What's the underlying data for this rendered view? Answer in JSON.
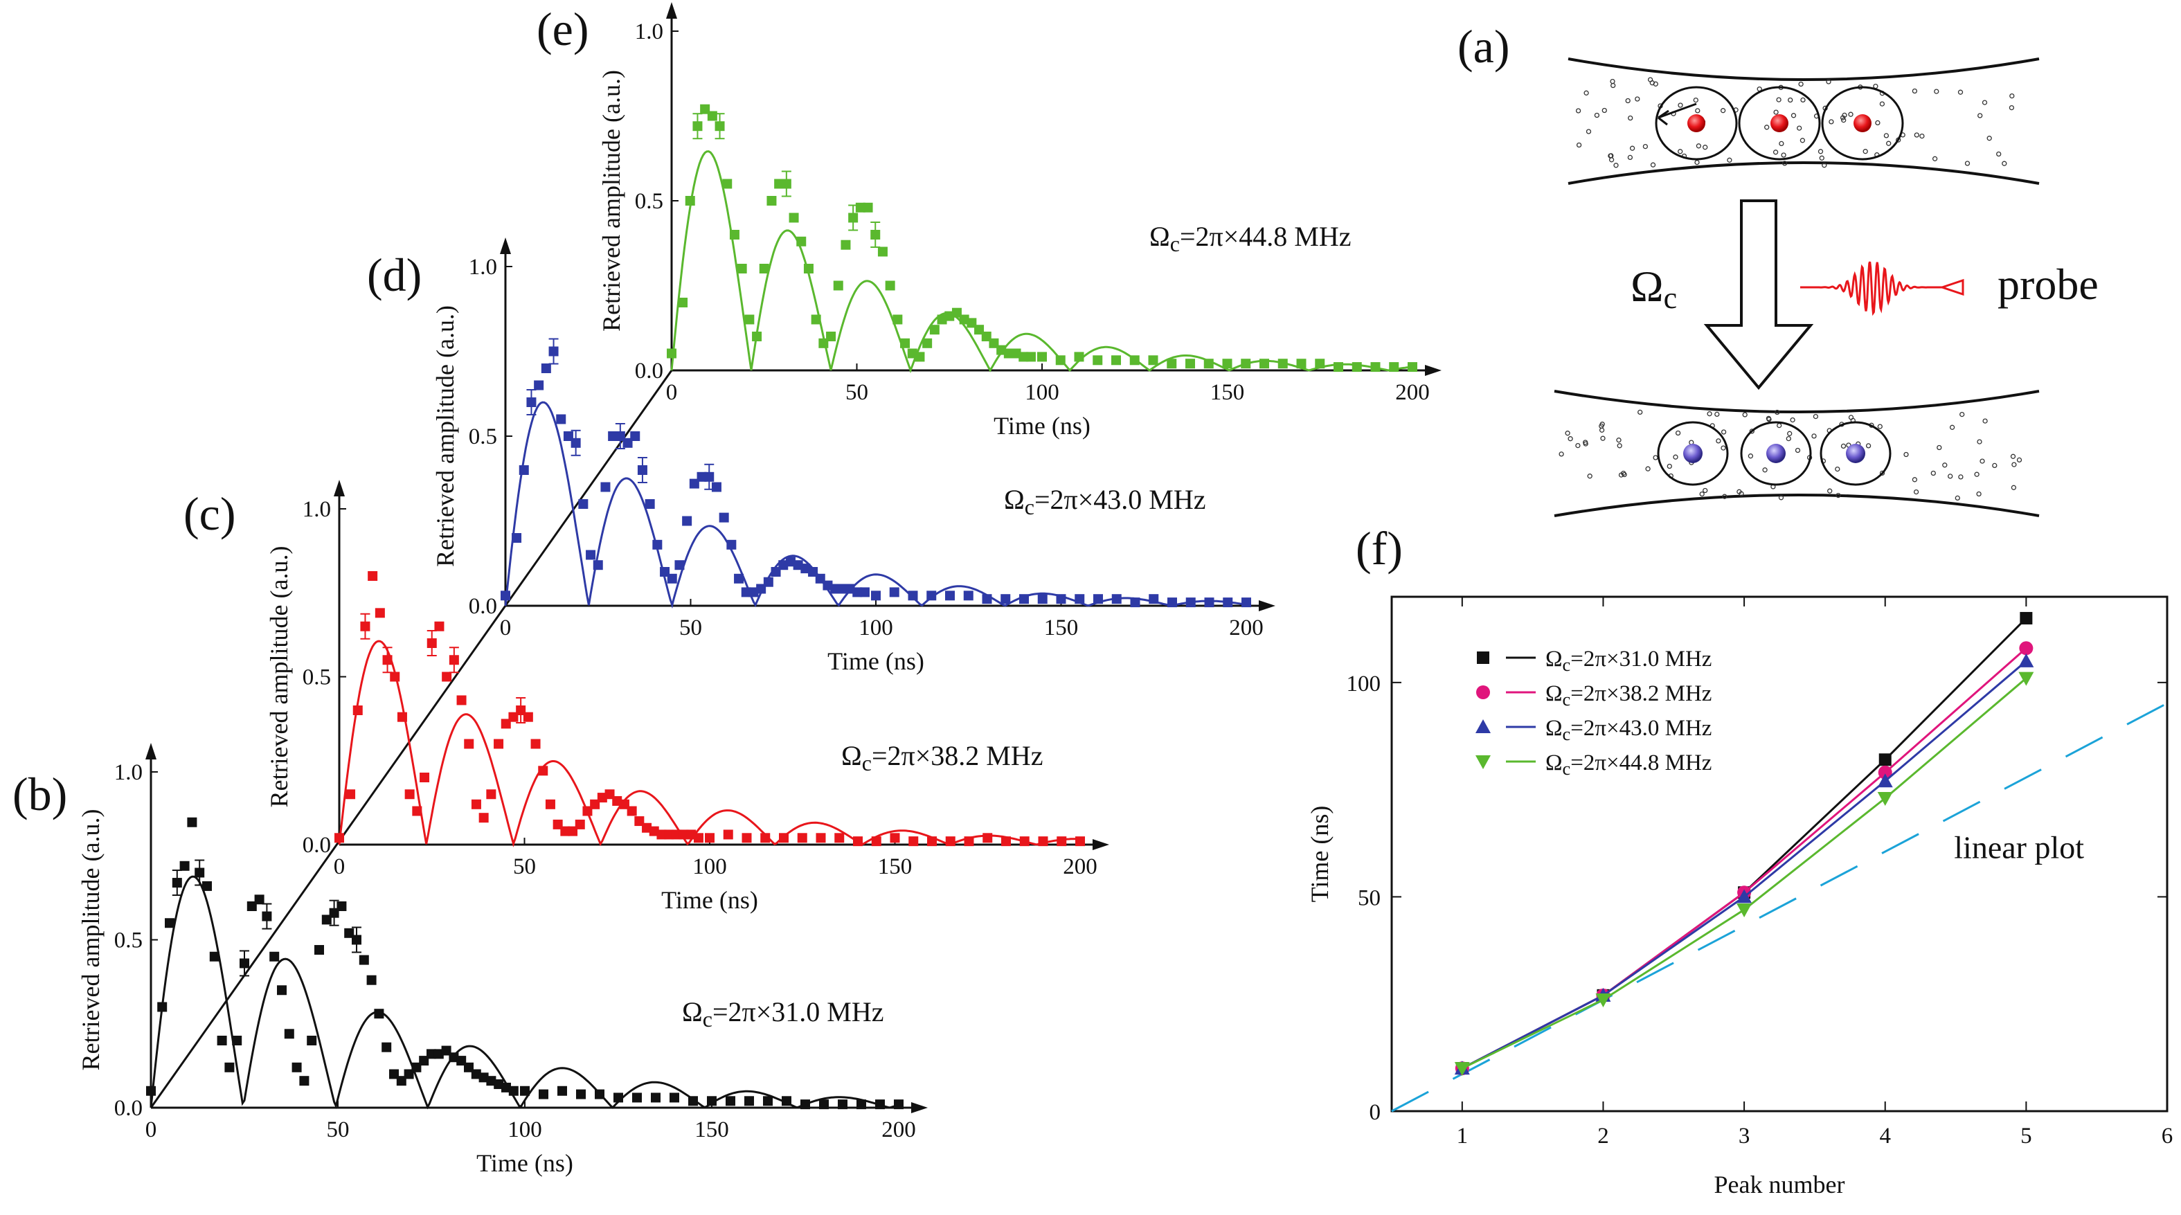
{
  "panels": {
    "a": {
      "label": "(a)",
      "omega_symbol": "Ω",
      "omega_sub": "c",
      "probe": "probe"
    },
    "b": {
      "label": "(b)"
    },
    "c": {
      "label": "(c)"
    },
    "d": {
      "label": "(d)"
    },
    "e": {
      "label": "(e)"
    },
    "f": {
      "label": "(f)"
    }
  },
  "chart_data": [
    {
      "panel": "(b)",
      "type": "scatter",
      "xlabel": "Time (ns)",
      "ylabel": "Retrieved amplitude (a.u.)",
      "xlim": [
        0,
        200
      ],
      "ylim": [
        0,
        1.0
      ],
      "xticks": [
        "0",
        "50",
        "100",
        "150",
        "200"
      ],
      "yticks": [
        "0.0",
        "0.5",
        "1.0"
      ],
      "annotation": "Ωc=2π×31.0 MHz",
      "color": "#111111",
      "marker": "square",
      "series": [
        {
          "x": [
            0,
            3,
            5,
            7,
            9,
            11,
            13,
            15,
            17,
            19,
            21,
            23,
            25,
            27,
            29,
            31,
            33,
            35,
            37,
            39,
            41,
            43,
            45,
            47,
            49,
            51,
            53,
            55,
            57,
            59,
            61,
            63,
            65,
            67,
            69,
            71,
            73,
            75,
            77,
            79,
            81,
            83,
            85,
            87,
            89,
            91,
            93,
            95,
            97,
            100,
            105,
            110,
            115,
            120,
            125,
            130,
            135,
            140,
            145,
            150,
            155,
            160,
            165,
            170,
            175,
            180,
            185,
            190,
            195,
            200
          ],
          "y": [
            0.05,
            0.3,
            0.55,
            0.67,
            0.72,
            0.85,
            0.7,
            0.66,
            0.45,
            0.2,
            0.12,
            0.2,
            0.43,
            0.6,
            0.62,
            0.57,
            0.45,
            0.35,
            0.22,
            0.12,
            0.08,
            0.2,
            0.47,
            0.56,
            0.58,
            0.6,
            0.52,
            0.5,
            0.44,
            0.38,
            0.28,
            0.18,
            0.1,
            0.08,
            0.1,
            0.12,
            0.14,
            0.16,
            0.16,
            0.17,
            0.15,
            0.14,
            0.12,
            0.1,
            0.09,
            0.08,
            0.07,
            0.06,
            0.05,
            0.05,
            0.04,
            0.05,
            0.04,
            0.04,
            0.03,
            0.03,
            0.03,
            0.03,
            0.02,
            0.02,
            0.02,
            0.02,
            0.02,
            0.02,
            0.01,
            0.01,
            0.01,
            0.01,
            0.01,
            0.01
          ]
        },
        {
          "name": "fit",
          "freq": 0.0405,
          "decay": 35,
          "amp": 0.85
        }
      ]
    },
    {
      "panel": "(c)",
      "type": "scatter",
      "xlabel": "Time (ns)",
      "ylabel": "Retrieved amplitude (a.u.)",
      "xlim": [
        0,
        200
      ],
      "ylim": [
        0,
        1.0
      ],
      "xticks": [
        "0",
        "50",
        "100",
        "150",
        "200"
      ],
      "yticks": [
        "0.0",
        "0.5",
        "1.0"
      ],
      "annotation": "Ωc=2π×38.2 MHz",
      "color": "#e8161b",
      "marker": "square",
      "series": [
        {
          "x": [
            0,
            3,
            5,
            7,
            9,
            11,
            13,
            15,
            17,
            19,
            21,
            23,
            25,
            27,
            29,
            31,
            33,
            35,
            37,
            39,
            41,
            43,
            45,
            47,
            49,
            51,
            53,
            55,
            57,
            59,
            61,
            63,
            65,
            67,
            69,
            71,
            73,
            75,
            77,
            79,
            81,
            83,
            85,
            87,
            89,
            91,
            93,
            95,
            97,
            100,
            105,
            110,
            115,
            120,
            125,
            130,
            135,
            140,
            145,
            150,
            155,
            160,
            165,
            170,
            175,
            180,
            185,
            190,
            195,
            200
          ],
          "y": [
            0.02,
            0.15,
            0.4,
            0.65,
            0.8,
            0.69,
            0.55,
            0.5,
            0.38,
            0.15,
            0.1,
            0.2,
            0.6,
            0.65,
            0.5,
            0.55,
            0.43,
            0.3,
            0.12,
            0.08,
            0.15,
            0.3,
            0.36,
            0.38,
            0.4,
            0.38,
            0.3,
            0.22,
            0.12,
            0.06,
            0.04,
            0.04,
            0.06,
            0.1,
            0.12,
            0.14,
            0.15,
            0.13,
            0.12,
            0.1,
            0.07,
            0.05,
            0.04,
            0.03,
            0.03,
            0.03,
            0.03,
            0.03,
            0.02,
            0.02,
            0.03,
            0.02,
            0.02,
            0.02,
            0.02,
            0.02,
            0.02,
            0.01,
            0.01,
            0.02,
            0.01,
            0.01,
            0.01,
            0.01,
            0.02,
            0.01,
            0.01,
            0.01,
            0.01,
            0.01
          ]
        },
        {
          "name": "fit",
          "freq": 0.0425,
          "decay": 33,
          "amp": 0.75
        }
      ]
    },
    {
      "panel": "(d)",
      "type": "scatter",
      "xlabel": "Time (ns)",
      "ylabel": "Retrieved amplitude (a.u.)",
      "xlim": [
        0,
        200
      ],
      "ylim": [
        0,
        1.0
      ],
      "xticks": [
        "0",
        "50",
        "100",
        "150",
        "200"
      ],
      "yticks": [
        "0.0",
        "0.5",
        "1.0"
      ],
      "annotation": "Ωc=2π×43.0 MHz",
      "color": "#2e3aa6",
      "marker": "square",
      "series": [
        {
          "x": [
            0,
            3,
            5,
            7,
            9,
            11,
            13,
            15,
            17,
            19,
            21,
            23,
            25,
            27,
            29,
            31,
            33,
            35,
            37,
            39,
            41,
            43,
            45,
            47,
            49,
            51,
            53,
            55,
            57,
            59,
            61,
            63,
            65,
            67,
            69,
            71,
            73,
            75,
            77,
            79,
            81,
            83,
            85,
            87,
            89,
            91,
            93,
            95,
            97,
            100,
            105,
            110,
            115,
            120,
            125,
            130,
            135,
            140,
            145,
            150,
            155,
            160,
            165,
            170,
            175,
            180,
            185,
            190,
            195,
            200
          ],
          "y": [
            0.03,
            0.2,
            0.4,
            0.6,
            0.65,
            0.7,
            0.75,
            0.55,
            0.5,
            0.48,
            0.3,
            0.15,
            0.12,
            0.35,
            0.5,
            0.5,
            0.48,
            0.5,
            0.4,
            0.3,
            0.18,
            0.1,
            0.08,
            0.12,
            0.25,
            0.36,
            0.38,
            0.38,
            0.35,
            0.26,
            0.18,
            0.08,
            0.04,
            0.04,
            0.05,
            0.07,
            0.1,
            0.12,
            0.13,
            0.12,
            0.11,
            0.1,
            0.08,
            0.06,
            0.05,
            0.05,
            0.05,
            0.04,
            0.04,
            0.03,
            0.04,
            0.03,
            0.03,
            0.03,
            0.03,
            0.02,
            0.02,
            0.02,
            0.02,
            0.02,
            0.02,
            0.02,
            0.02,
            0.01,
            0.02,
            0.01,
            0.01,
            0.01,
            0.01,
            0.01
          ]
        },
        {
          "name": "fit",
          "freq": 0.0445,
          "decay": 30,
          "amp": 0.75
        }
      ]
    },
    {
      "panel": "(e)",
      "type": "scatter",
      "xlabel": "Time (ns)",
      "ylabel": "Retrieved amplitude (a.u.)",
      "xlim": [
        0,
        200
      ],
      "ylim": [
        0,
        1.0
      ],
      "xticks": [
        "0",
        "50",
        "100",
        "150",
        "200"
      ],
      "yticks": [
        "0.0",
        "0.5",
        "1.0"
      ],
      "annotation": "Ωc=2π×44.8 MHz",
      "color": "#5ab82e",
      "marker": "square",
      "series": [
        {
          "x": [
            0,
            3,
            5,
            7,
            9,
            11,
            13,
            15,
            17,
            19,
            21,
            23,
            25,
            27,
            29,
            31,
            33,
            35,
            37,
            39,
            41,
            43,
            45,
            47,
            49,
            51,
            53,
            55,
            57,
            59,
            61,
            63,
            65,
            67,
            69,
            71,
            73,
            75,
            77,
            79,
            81,
            83,
            85,
            87,
            89,
            91,
            93,
            95,
            97,
            100,
            105,
            110,
            115,
            120,
            125,
            130,
            135,
            140,
            145,
            150,
            155,
            160,
            165,
            170,
            175,
            180,
            185,
            190,
            195,
            200
          ],
          "y": [
            0.05,
            0.2,
            0.5,
            0.72,
            0.77,
            0.75,
            0.72,
            0.55,
            0.4,
            0.3,
            0.15,
            0.1,
            0.3,
            0.5,
            0.55,
            0.55,
            0.45,
            0.38,
            0.3,
            0.15,
            0.08,
            0.1,
            0.25,
            0.37,
            0.45,
            0.48,
            0.48,
            0.4,
            0.35,
            0.25,
            0.15,
            0.08,
            0.05,
            0.04,
            0.08,
            0.12,
            0.15,
            0.16,
            0.17,
            0.15,
            0.14,
            0.12,
            0.1,
            0.08,
            0.06,
            0.05,
            0.05,
            0.04,
            0.04,
            0.04,
            0.03,
            0.04,
            0.03,
            0.03,
            0.03,
            0.03,
            0.02,
            0.02,
            0.02,
            0.02,
            0.02,
            0.02,
            0.02,
            0.02,
            0.02,
            0.01,
            0.01,
            0.01,
            0.01,
            0.01
          ]
        },
        {
          "name": "fit",
          "freq": 0.0465,
          "decay": 30,
          "amp": 0.8
        }
      ]
    },
    {
      "panel": "(f)",
      "type": "line",
      "xlabel": "Peak number",
      "ylabel": "Time (ns)",
      "xlim": [
        0.5,
        6
      ],
      "ylim": [
        0,
        120
      ],
      "xticks": [
        "1",
        "2",
        "3",
        "4",
        "5",
        "6"
      ],
      "yticks": [
        "0",
        "50",
        "100"
      ],
      "x": [
        1,
        2,
        3,
        4,
        5
      ],
      "series": [
        {
          "name": "Ωc=2π×31.0 MHz",
          "color": "#111111",
          "marker": "square",
          "values": [
            10,
            27,
            51,
            82,
            115
          ]
        },
        {
          "name": "Ωc=2π×38.2 MHz",
          "color": "#e0157c",
          "marker": "circle",
          "values": [
            10,
            27,
            51,
            79,
            108
          ]
        },
        {
          "name": "Ωc=2π×43.0 MHz",
          "color": "#2e3aa6",
          "marker": "triangle-up",
          "values": [
            10,
            27,
            50,
            77,
            105
          ]
        },
        {
          "name": "Ωc=2π×44.8 MHz",
          "color": "#5ab82e",
          "marker": "triangle-down",
          "values": [
            10,
            26,
            47,
            73,
            101
          ]
        }
      ],
      "reference": {
        "name": "linear plot",
        "color": "#1ba3d8",
        "style": "dashed",
        "slope": 17.3,
        "x0": 0.5
      },
      "annotation": "linear plot",
      "legend": "top-left"
    }
  ]
}
